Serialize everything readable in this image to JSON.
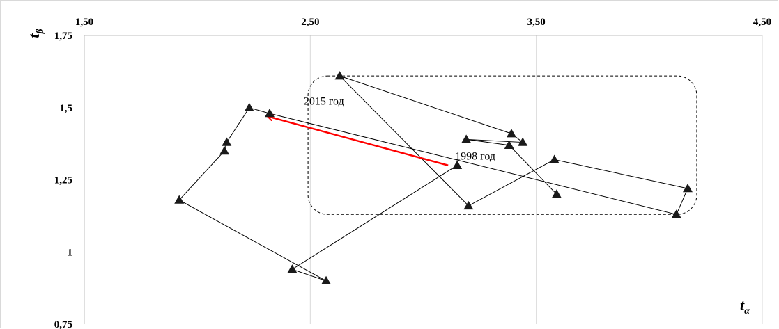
{
  "chart_data": {
    "type": "scatter",
    "xlabel": "t",
    "xlabel_sub": "α",
    "ylabel": "t",
    "ylabel_sub": "β",
    "xlim": [
      1.5,
      4.5
    ],
    "ylim": [
      0.75,
      1.75
    ],
    "x_ticks": [
      1.5,
      2.5,
      3.5,
      4.5
    ],
    "x_tick_labels": [
      "1,50",
      "2,50",
      "3,50",
      "4,50"
    ],
    "y_ticks": [
      0.75,
      1,
      1.25,
      1.5,
      1.75
    ],
    "y_tick_labels": [
      "0,75",
      "1",
      "1,25",
      "1,5",
      "1,75"
    ],
    "x_axis_position": "top",
    "grid": "vertical",
    "marker": "triangle",
    "line_color": "#000000",
    "marker_color": "#1a1a1a",
    "series": [
      {
        "points": [
          [
            3.15,
            1.3
          ],
          [
            2.42,
            0.94
          ],
          [
            2.57,
            0.9
          ],
          [
            1.92,
            1.18
          ],
          [
            2.12,
            1.35
          ],
          [
            2.13,
            1.38
          ],
          [
            2.23,
            1.5
          ],
          [
            2.32,
            1.48
          ],
          [
            4.12,
            1.13
          ],
          [
            4.17,
            1.22
          ],
          [
            3.58,
            1.32
          ],
          [
            3.2,
            1.16
          ],
          [
            2.63,
            1.61
          ],
          [
            3.39,
            1.41
          ],
          [
            3.44,
            1.38
          ],
          [
            3.19,
            1.39
          ],
          [
            3.38,
            1.37
          ],
          [
            3.59,
            1.2
          ]
        ]
      }
    ],
    "annotations": [
      {
        "text": "1998 год",
        "x": 3.23,
        "y": 1.32
      },
      {
        "text": "2015 год",
        "x": 2.56,
        "y": 1.51
      }
    ],
    "arrow": {
      "from": [
        3.11,
        1.3
      ],
      "to": [
        2.31,
        1.47
      ],
      "color": "#ff0000"
    },
    "highlight_region": {
      "x": [
        2.49,
        4.21
      ],
      "y": [
        1.13,
        1.61
      ],
      "style": "dashed"
    }
  }
}
